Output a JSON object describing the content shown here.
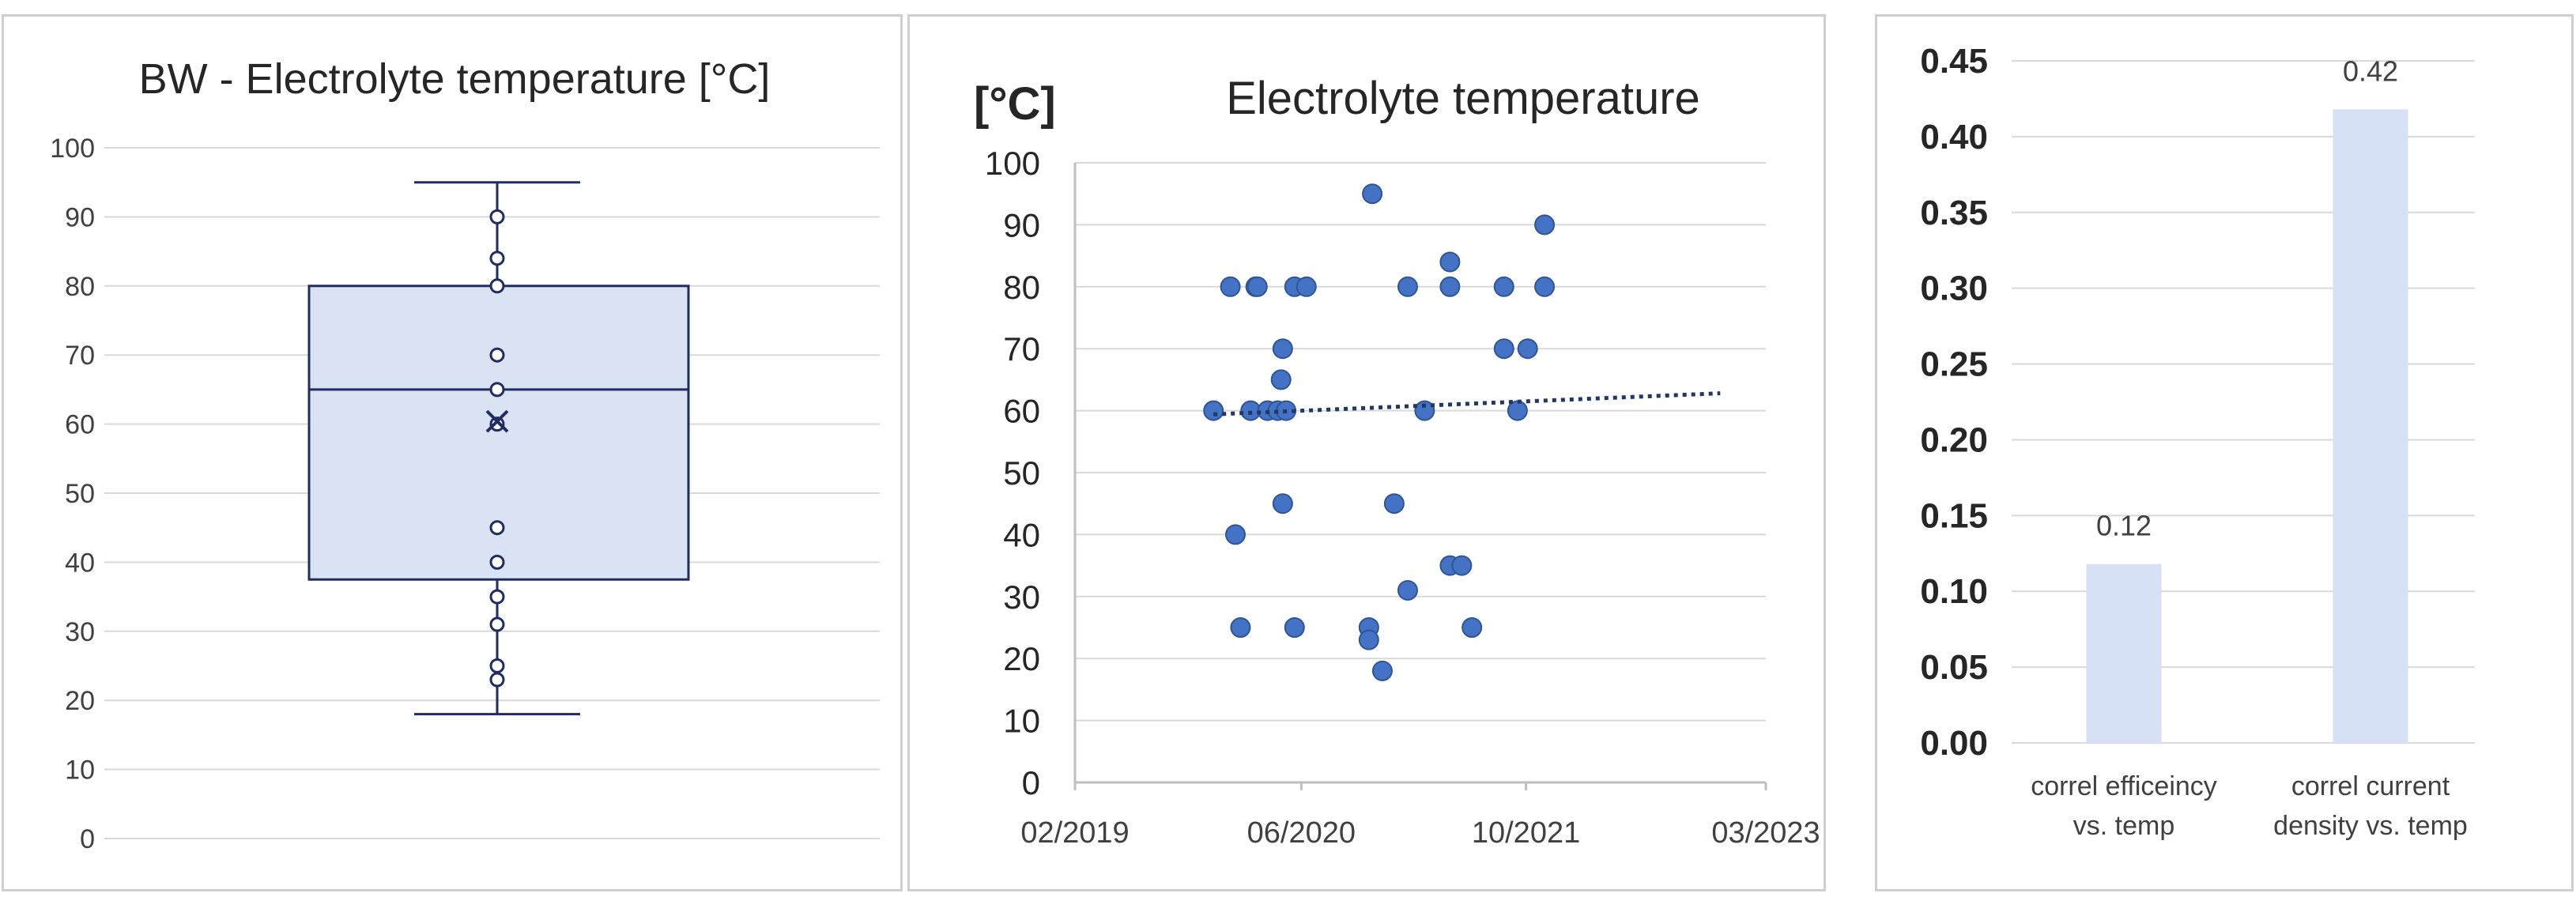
{
  "chart_data": [
    {
      "type": "box",
      "title": "BW - Electrolyte temperature [°C]",
      "ylim": [
        0,
        100
      ],
      "yticks": [
        0,
        10,
        20,
        30,
        40,
        50,
        60,
        70,
        80,
        90,
        100
      ],
      "whisker_low": 18,
      "q1": 37.5,
      "median": 65,
      "q3": 80,
      "whisker_high": 95,
      "mean": 60.4,
      "points": [
        90,
        84,
        80,
        70,
        65,
        60,
        45,
        40,
        35,
        31,
        25,
        23
      ]
    },
    {
      "type": "scatter",
      "title": "Electrolyte temperature",
      "ylabel": "[°C]",
      "ylim": [
        0,
        100
      ],
      "yticks": [
        0,
        10,
        20,
        30,
        40,
        50,
        60,
        70,
        80,
        90,
        100
      ],
      "xlim": [
        2019.08,
        2023.17
      ],
      "xticks": [
        {
          "v": 2019.08,
          "label": "02/2019"
        },
        {
          "v": 2020.42,
          "label": "06/2020"
        },
        {
          "v": 2021.75,
          "label": "10/2021"
        },
        {
          "v": 2023.17,
          "label": "03/2023"
        }
      ],
      "points": [
        [
          2019.9,
          60
        ],
        [
          2020.0,
          80
        ],
        [
          2020.03,
          40
        ],
        [
          2020.06,
          25
        ],
        [
          2020.12,
          60
        ],
        [
          2020.15,
          80
        ],
        [
          2020.16,
          80
        ],
        [
          2020.22,
          60
        ],
        [
          2020.28,
          60
        ],
        [
          2020.3,
          65
        ],
        [
          2020.31,
          70
        ],
        [
          2020.31,
          45
        ],
        [
          2020.33,
          60
        ],
        [
          2020.38,
          80
        ],
        [
          2020.38,
          25
        ],
        [
          2020.45,
          80
        ],
        [
          2020.82,
          25
        ],
        [
          2020.82,
          23
        ],
        [
          2020.84,
          95
        ],
        [
          2020.9,
          18
        ],
        [
          2020.97,
          45
        ],
        [
          2021.05,
          31
        ],
        [
          2021.05,
          80
        ],
        [
          2021.15,
          60
        ],
        [
          2021.3,
          84
        ],
        [
          2021.3,
          80
        ],
        [
          2021.3,
          35
        ],
        [
          2021.37,
          35
        ],
        [
          2021.43,
          25
        ],
        [
          2021.62,
          80
        ],
        [
          2021.62,
          70
        ],
        [
          2021.7,
          60
        ],
        [
          2021.76,
          70
        ],
        [
          2021.86,
          90
        ],
        [
          2021.86,
          80
        ]
      ],
      "trendline": {
        "x": [
          2019.9,
          2022.9
        ],
        "y": [
          59.4,
          62.8
        ],
        "style": "dotted"
      }
    },
    {
      "type": "bar",
      "ylim": [
        0,
        0.45
      ],
      "yticks": [
        "0.00",
        "0.05",
        "0.10",
        "0.15",
        "0.20",
        "0.25",
        "0.30",
        "0.35",
        "0.40",
        "0.45"
      ],
      "categories": [
        [
          "correl efficeincy",
          "vs. temp"
        ],
        [
          "correl  current",
          "density vs. temp"
        ]
      ],
      "values": [
        0.118,
        0.418
      ],
      "data_labels": [
        "0.12",
        "0.42"
      ]
    }
  ],
  "colors": {
    "grid": "#d9d9d9",
    "axis_text": "#404040",
    "box_fill": "#dae3f3",
    "box_stroke": "#1f2d63",
    "marker": "#4472c4",
    "marker_stroke": "#2f5597",
    "trend": "#1f3864",
    "bar_fill": "#d6e1f5"
  }
}
